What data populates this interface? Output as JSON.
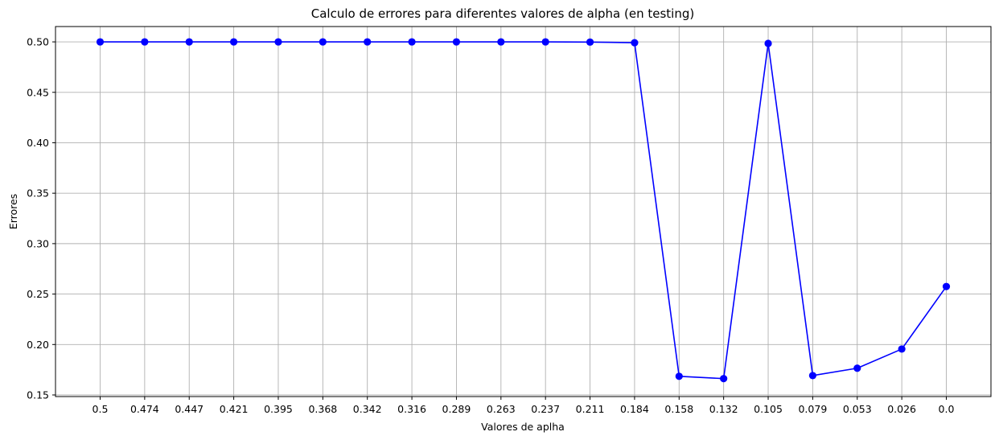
{
  "chart_data": {
    "type": "line",
    "title": "Calculo de errores para diferentes valores de alpha (en testing)",
    "xlabel": "Valores de aplha",
    "ylabel": "Errores",
    "categories": [
      "0.5",
      "0.474",
      "0.447",
      "0.421",
      "0.395",
      "0.368",
      "0.342",
      "0.316",
      "0.289",
      "0.263",
      "0.237",
      "0.211",
      "0.184",
      "0.158",
      "0.132",
      "0.105",
      "0.079",
      "0.053",
      "0.026",
      "0.0"
    ],
    "series": [
      {
        "values": [
          0.5,
          0.5,
          0.5,
          0.5,
          0.5,
          0.5,
          0.5,
          0.5,
          0.5,
          0.5,
          0.5,
          0.4998,
          0.4992,
          0.1685,
          0.1662,
          0.4985,
          0.1692,
          0.1765,
          0.1955,
          0.2575
        ],
        "color": "#0000ff",
        "marker": "circle"
      }
    ],
    "yticks": [
      "0.15",
      "0.20",
      "0.25",
      "0.30",
      "0.35",
      "0.40",
      "0.45",
      "0.50"
    ],
    "ylim": [
      0.1484,
      0.5152
    ],
    "grid": true,
    "legend": "none"
  }
}
